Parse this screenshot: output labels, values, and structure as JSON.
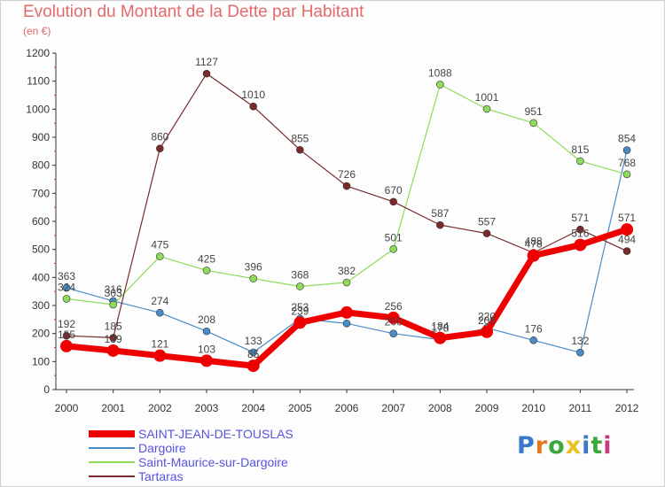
{
  "title": "Evolution du Montant de la Dette par Habitant",
  "subtitle": "(en €)",
  "logo": {
    "letters": [
      "P",
      "r",
      "o",
      "x",
      "i",
      "t",
      "i"
    ],
    "colors": [
      "#3a78c9",
      "#e8761e",
      "#3aa83a",
      "#e8c21e",
      "#3a78c9",
      "#3aa83a",
      "#c93a7a"
    ]
  },
  "chart_data": {
    "type": "line",
    "x": [
      "2000",
      "2001",
      "2002",
      "2003",
      "2004",
      "2005",
      "2006",
      "2007",
      "2008",
      "2009",
      "2010",
      "2011",
      "2012"
    ],
    "ylim": [
      0,
      1200
    ],
    "yticks": [
      0,
      100,
      200,
      300,
      400,
      500,
      600,
      700,
      800,
      900,
      1000,
      1100,
      1200
    ],
    "grid": false,
    "legend_position": "bottom-left",
    "series": [
      {
        "name": "Dargoire",
        "color": "#4a8cc9",
        "width": 1.2,
        "values": [
          363,
          316,
          274,
          208,
          133,
          253,
          236,
          200,
          178,
          220,
          176,
          132,
          854
        ],
        "labels": [
          "363",
          "316",
          "274",
          "208",
          "133",
          "253",
          "",
          "200",
          "178",
          "220",
          "176",
          "132",
          "854"
        ]
      },
      {
        "name": "Saint-Maurice-sur-Dargoire",
        "color": "#8edc5a",
        "width": 1.2,
        "values": [
          324,
          303,
          475,
          425,
          396,
          368,
          382,
          501,
          1088,
          1001,
          951,
          815,
          768
        ],
        "labels": [
          "324",
          "303",
          "475",
          "425",
          "396",
          "368",
          "382",
          "501",
          "1088",
          "1001",
          "951",
          "815",
          "768"
        ]
      },
      {
        "name": "Tartaras",
        "color": "#7a2a2a",
        "width": 1.2,
        "values": [
          192,
          185,
          860,
          1127,
          1010,
          855,
          726,
          670,
          587,
          557,
          488,
          571,
          494
        ],
        "labels": [
          "192",
          "185",
          "860",
          "1127",
          "1010",
          "855",
          "726",
          "670",
          "587",
          "557",
          "488",
          "571",
          "494"
        ]
      },
      {
        "name": "SAINT-JEAN-DE-TOUSLAS",
        "color": "#ee0000",
        "width": 7,
        "values": [
          155,
          139,
          121,
          103,
          85,
          239,
          275,
          256,
          184,
          206,
          478,
          516,
          571
        ],
        "labels": [
          "155",
          "139",
          "121",
          "103",
          "85",
          "239",
          "",
          "256",
          "184",
          "206",
          "478",
          "516",
          "571"
        ]
      }
    ]
  }
}
